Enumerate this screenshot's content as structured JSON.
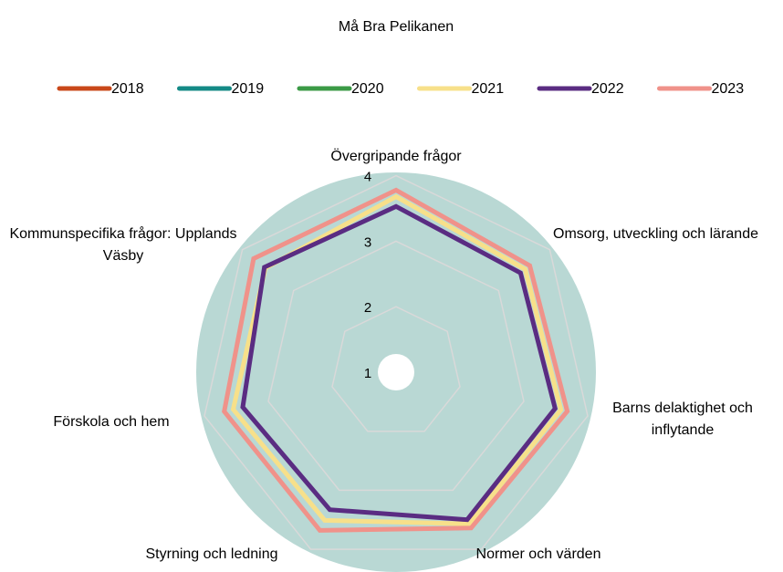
{
  "chart_data": {
    "type": "radar",
    "title": "Må Bra Pelikanen",
    "categories": [
      "Övergripande frågor",
      "Omsorg, utveckling och lärande",
      "Barns delaktighet och inflytande",
      "Normer och värden",
      "Styrning och ledning",
      "Förskola och hem",
      "Kommunspecifika frågor: Upplands Väsby"
    ],
    "series": [
      {
        "name": "2018",
        "color": "#c9481a",
        "values": [
          null,
          null,
          null,
          null,
          null,
          null,
          null
        ]
      },
      {
        "name": "2019",
        "color": "#148a86",
        "values": [
          null,
          null,
          null,
          null,
          null,
          null,
          null
        ]
      },
      {
        "name": "2020",
        "color": "#3b9a46",
        "values": [
          null,
          null,
          null,
          null,
          null,
          null,
          null
        ]
      },
      {
        "name": "2021",
        "color": "#f7e08a",
        "values": [
          3.68,
          3.52,
          3.58,
          3.57,
          3.51,
          3.55,
          3.55
        ]
      },
      {
        "name": "2022",
        "color": "#5a2c82",
        "values": [
          3.53,
          3.43,
          3.49,
          3.5,
          3.33,
          3.4,
          3.57
        ]
      },
      {
        "name": "2023",
        "color": "#f0928a",
        "values": [
          3.78,
          3.61,
          3.68,
          3.64,
          3.68,
          3.69,
          3.78
        ]
      }
    ],
    "rlim": [
      1,
      4.05
    ],
    "rticks": [
      1,
      2,
      3,
      4
    ],
    "grid": true,
    "legend": "top"
  }
}
